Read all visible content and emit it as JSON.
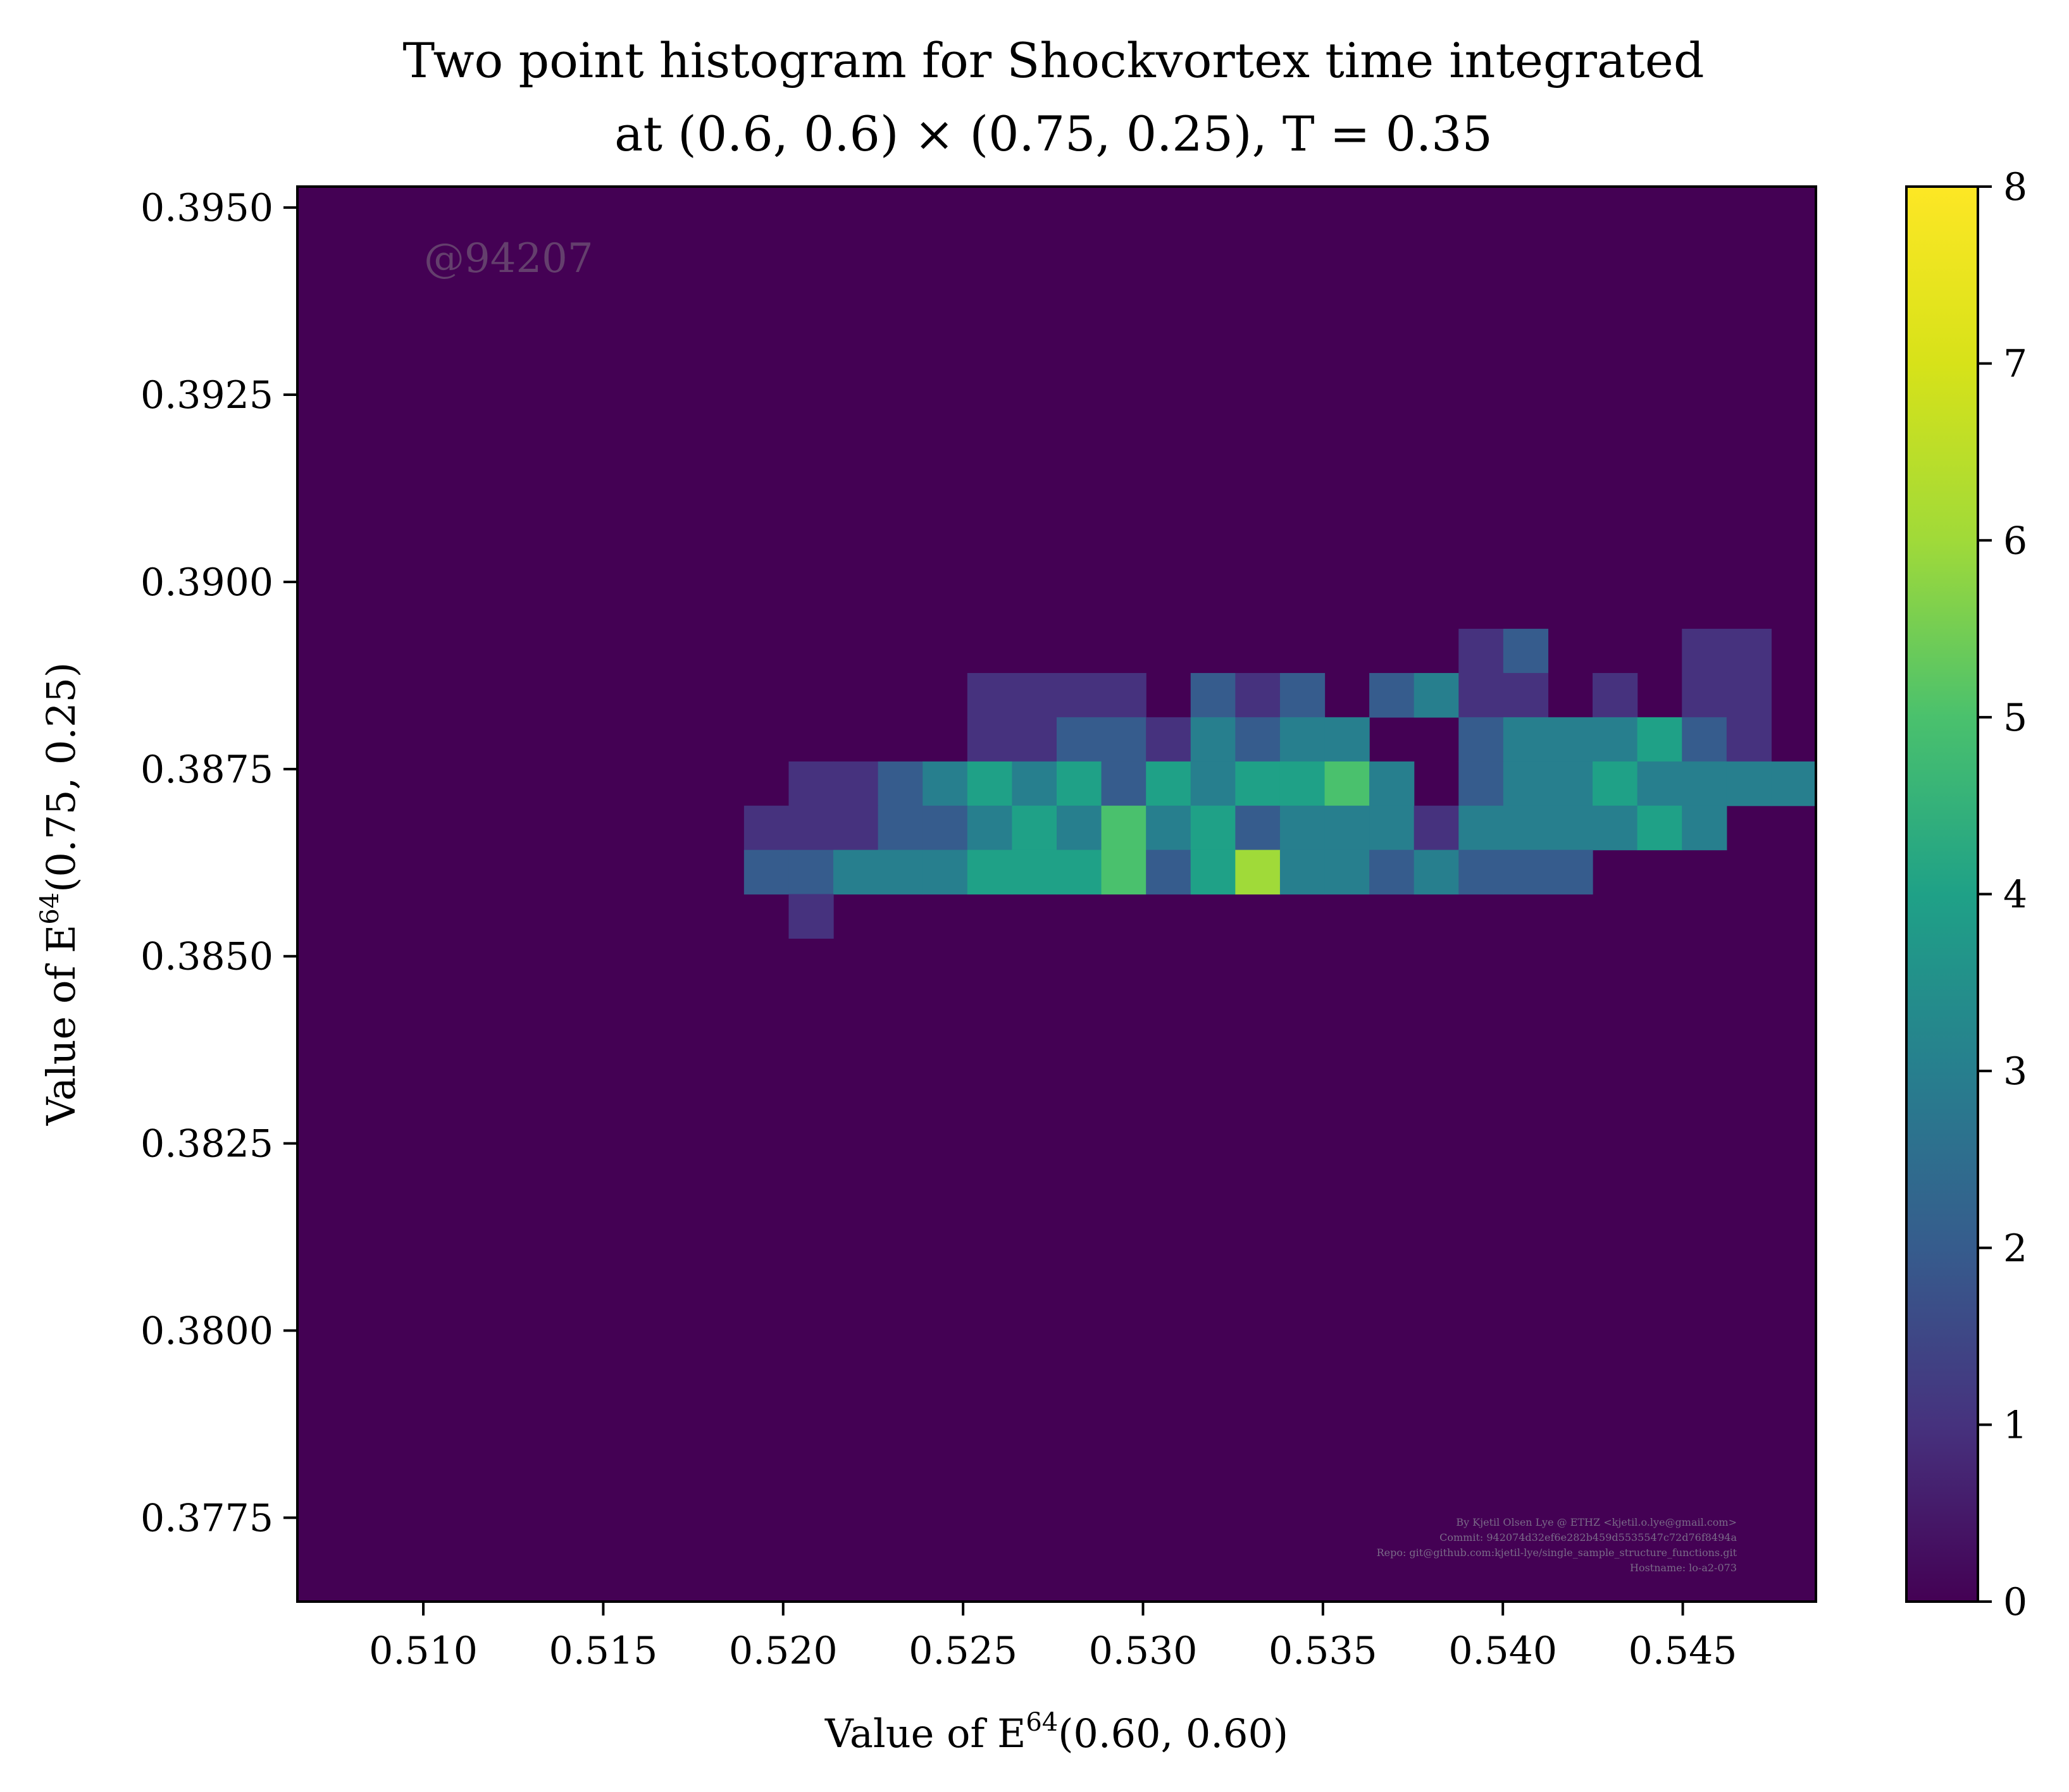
{
  "chart_data": {
    "type": "heatmap",
    "title_lines": [
      "Two point histogram for Shockvortex time integrated",
      "at (0.6, 0.6) × (0.75, 0.25), T = 0.35"
    ],
    "xlabel": {
      "prefix": "Value of E",
      "sup": "64",
      "suffix": "(0.60, 0.60)"
    },
    "ylabel": {
      "prefix": "Value of E",
      "sup": "64",
      "suffix": "(0.75, 0.25)"
    },
    "xlim": [
      0.5065,
      0.5487
    ],
    "ylim": [
      0.37638,
      0.39528
    ],
    "x_ticks": [
      0.51,
      0.515,
      0.52,
      0.525,
      0.53,
      0.535,
      0.54,
      0.545
    ],
    "x_tick_labels": [
      "0.510",
      "0.515",
      "0.520",
      "0.525",
      "0.530",
      "0.535",
      "0.540",
      "0.545"
    ],
    "y_ticks": [
      0.3775,
      0.38,
      0.3825,
      0.385,
      0.3875,
      0.39,
      0.3925,
      0.395
    ],
    "y_tick_labels": [
      "0.3775",
      "0.3800",
      "0.3825",
      "0.3850",
      "0.3875",
      "0.3900",
      "0.3925",
      "0.3950"
    ],
    "colorbar": {
      "min": 0,
      "max": 8,
      "ticks": [
        0,
        1,
        2,
        3,
        4,
        5,
        6,
        7,
        8
      ],
      "tick_labels": [
        "0",
        "1",
        "2",
        "3",
        "4",
        "5",
        "6",
        "7",
        "8"
      ],
      "colormap": "viridis"
    },
    "grid": false,
    "bins": {
      "nx": 34,
      "ny": 32
    },
    "counts_rows_top_to_bottom": [
      "0000000000000000000000000000000000",
      "0000000000000000000000000000000000",
      "0000000000000000000000000000000000",
      "0000000000000000000000000000000000",
      "0000000000000000000000000000000000",
      "0000000000000000000000000000000000",
      "0000000000000000000000000000000000",
      "0000000000000000000000000000000000",
      "0000000000000000000000000000000000",
      "0000000000000000000000000000000000",
      "0000000000000000000000000012000110",
      "0000000000000001111021202311010110",
      "0000000000000001122132330023334210",
      "0000000000011234342434453023343333",
      "0000000000111223435342333133334300",
      "0000000000223334445246332322200000",
      "0000000000010000000000000000000000",
      "0000000000000000000000000000000000",
      "0000000000000000000000000000000000",
      "0000000000000000000000000000000000",
      "0000000000000000000000000000000000",
      "0000000000000000000000000000000000",
      "0000000000000000000000000000000000",
      "0000000000000000000000000000000000",
      "0000000000000000000000000000000000",
      "0000000000000000000000000000000000",
      "0000000000000000000000000000000000",
      "0000000000000000000000000000000000",
      "0000000000000000000000000000000000",
      "0000000000000000000000000000000000",
      "0000000000000000000000000000000000",
      "0000000000000000000000000000000000"
    ],
    "watermark": "@94207",
    "credits": [
      "By Kjetil Olsen Lye @ ETHZ <kjetil.o.lye@gmail.com>",
      "Commit: 942074d32ef6e282b459d5535547c72d76f8494a",
      "Repo: git@github.com:kjetil-lye/single_sample_structure_functions.git",
      "Hostname: lo-a2-073"
    ]
  }
}
